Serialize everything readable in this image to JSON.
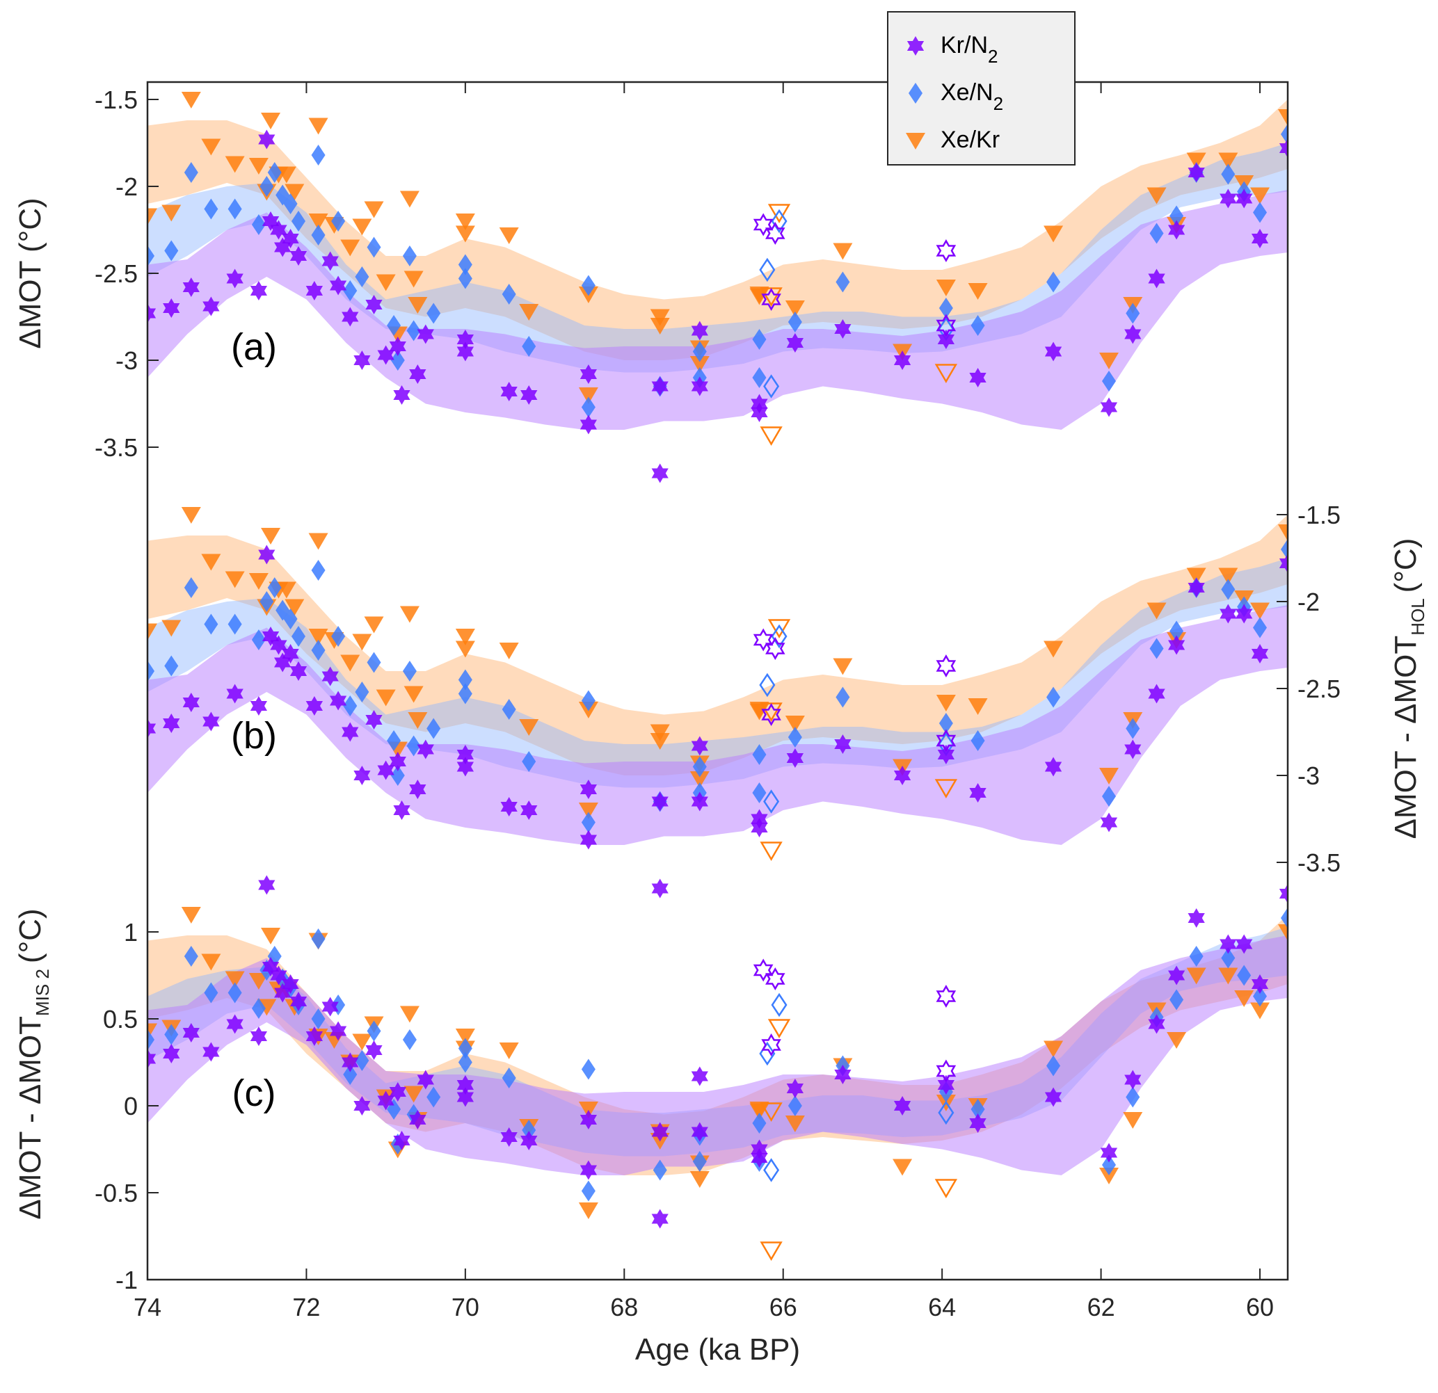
{
  "chart_data": {
    "type": "scatter",
    "title": "",
    "xlabel": "Age (ka BP)",
    "x_ticks": [
      74,
      72,
      70,
      68,
      66,
      64,
      62,
      60
    ],
    "xlim": [
      74,
      59.65
    ],
    "x_reversed": true,
    "legend": {
      "placement": "top-right",
      "entries": [
        {
          "label": "Kr/N",
          "sub": "2",
          "marker": "hexagram",
          "color": "#7F00FF"
        },
        {
          "label": "Xe/N",
          "sub": "2",
          "marker": "diamond",
          "color": "#3C7DFF"
        },
        {
          "label": "Xe/Kr",
          "sub": "",
          "marker": "triangle-down",
          "color": "#FF7F0E"
        }
      ]
    },
    "colors": {
      "kr": "#7F00FF",
      "xe": "#3C7DFF",
      "xekr": "#FF7F0E",
      "kr_band": "#B87BFF",
      "xe_band": "#8FB5FF",
      "xekr_band": "#FFBE85"
    },
    "panels": [
      {
        "label": "(a)",
        "ylabel": "ΔMOT (°C)",
        "ylabel_side": "left",
        "y_ticks": [
          -1.5,
          -2,
          -2.5,
          -3,
          -3.5
        ],
        "y_tick_labels": [
          "-1.5",
          "-2",
          "-2.5",
          "-3",
          "-3.5"
        ],
        "ylim": [
          -3.9,
          -1.4
        ],
        "y_inverted_labels": true,
        "bands": {
          "x": [
            74,
            73.5,
            73,
            72.5,
            72,
            71.5,
            71,
            70.5,
            70,
            69.5,
            69,
            68.5,
            68,
            67.5,
            67,
            66.5,
            66,
            65.5,
            65,
            64.5,
            64,
            63.5,
            63,
            62.5,
            62,
            61.5,
            61,
            60.5,
            60,
            59.65
          ],
          "kr_upper": [
            -2.45,
            -2.42,
            -2.25,
            -2.15,
            -2.35,
            -2.6,
            -2.8,
            -2.82,
            -2.82,
            -2.85,
            -2.9,
            -2.93,
            -2.92,
            -2.92,
            -2.92,
            -2.88,
            -2.82,
            -2.82,
            -2.84,
            -2.86,
            -2.83,
            -2.78,
            -2.72,
            -2.6,
            -2.4,
            -2.22,
            -2.15,
            -2.1,
            -2.05,
            -2.02
          ],
          "kr_lower": [
            -3.1,
            -2.85,
            -2.65,
            -2.52,
            -2.65,
            -2.9,
            -3.1,
            -3.25,
            -3.3,
            -3.33,
            -3.37,
            -3.4,
            -3.4,
            -3.35,
            -3.35,
            -3.32,
            -3.2,
            -3.15,
            -3.18,
            -3.22,
            -3.25,
            -3.3,
            -3.37,
            -3.4,
            -3.25,
            -2.9,
            -2.6,
            -2.45,
            -2.4,
            -2.38
          ],
          "xe_upper": [
            -2.15,
            -2.05,
            -2.0,
            -1.98,
            -2.15,
            -2.45,
            -2.65,
            -2.6,
            -2.55,
            -2.6,
            -2.7,
            -2.8,
            -2.82,
            -2.82,
            -2.8,
            -2.78,
            -2.75,
            -2.72,
            -2.72,
            -2.75,
            -2.75,
            -2.72,
            -2.65,
            -2.5,
            -2.25,
            -2.05,
            -1.95,
            -1.85,
            -1.8,
            -1.75
          ],
          "xe_lower": [
            -2.52,
            -2.4,
            -2.25,
            -2.2,
            -2.4,
            -2.65,
            -2.82,
            -2.85,
            -2.88,
            -2.95,
            -3.0,
            -3.05,
            -3.07,
            -3.07,
            -3.05,
            -3.02,
            -2.95,
            -2.93,
            -2.94,
            -2.96,
            -2.95,
            -2.9,
            -2.85,
            -2.75,
            -2.5,
            -2.25,
            -2.12,
            -2.07,
            -2.05,
            -2.03
          ],
          "xekr_upper": [
            -1.65,
            -1.62,
            -1.62,
            -1.7,
            -1.95,
            -2.2,
            -2.4,
            -2.4,
            -2.3,
            -2.35,
            -2.45,
            -2.55,
            -2.62,
            -2.65,
            -2.63,
            -2.55,
            -2.45,
            -2.42,
            -2.45,
            -2.48,
            -2.48,
            -2.42,
            -2.35,
            -2.2,
            -2.0,
            -1.88,
            -1.82,
            -1.75,
            -1.65,
            -1.5
          ],
          "xekr_lower": [
            -2.1,
            -2.05,
            -1.98,
            -2.05,
            -2.3,
            -2.5,
            -2.7,
            -2.75,
            -2.7,
            -2.75,
            -2.85,
            -2.95,
            -3.0,
            -3.0,
            -2.98,
            -2.9,
            -2.8,
            -2.78,
            -2.8,
            -2.82,
            -2.8,
            -2.75,
            -2.65,
            -2.5,
            -2.3,
            -2.15,
            -2.05,
            -2.0,
            -1.95,
            -1.9
          ]
        },
        "kr_points": [
          [
            74,
            -2.73
          ],
          [
            73.7,
            -2.7
          ],
          [
            73.45,
            -2.58
          ],
          [
            73.2,
            -2.69
          ],
          [
            72.9,
            -2.53
          ],
          [
            72.6,
            -2.6
          ],
          [
            72.5,
            -1.73
          ],
          [
            72.45,
            -2.2
          ],
          [
            72.35,
            -2.25
          ],
          [
            72.3,
            -2.35
          ],
          [
            72.2,
            -2.3
          ],
          [
            72.1,
            -2.4
          ],
          [
            71.9,
            -2.6
          ],
          [
            71.7,
            -2.43
          ],
          [
            71.6,
            -2.57
          ],
          [
            71.45,
            -2.75
          ],
          [
            71.3,
            -3.0
          ],
          [
            71.15,
            -2.68
          ],
          [
            71.0,
            -2.97
          ],
          [
            70.85,
            -2.92
          ],
          [
            70.8,
            -3.2
          ],
          [
            70.6,
            -3.08
          ],
          [
            70.5,
            -2.85
          ],
          [
            70.0,
            -2.88
          ],
          [
            70.0,
            -2.95
          ],
          [
            69.45,
            -3.18
          ],
          [
            69.2,
            -3.2
          ],
          [
            68.45,
            -3.08
          ],
          [
            68.45,
            -3.37
          ],
          [
            67.55,
            -3.65
          ],
          [
            67.55,
            -3.15
          ],
          [
            67.05,
            -2.83
          ],
          [
            67.05,
            -3.15
          ],
          [
            66.3,
            -3.25
          ],
          [
            66.3,
            -3.3
          ],
          [
            65.85,
            -2.9
          ],
          [
            65.25,
            -2.82
          ],
          [
            64.5,
            -3.0
          ],
          [
            63.95,
            -2.88
          ],
          [
            63.55,
            -3.1
          ],
          [
            62.6,
            -2.95
          ],
          [
            61.9,
            -3.27
          ],
          [
            61.6,
            -2.85
          ],
          [
            61.3,
            -2.53
          ],
          [
            61.05,
            -2.25
          ],
          [
            60.8,
            -1.92
          ],
          [
            60.4,
            -2.07
          ],
          [
            60.2,
            -2.07
          ],
          [
            60.0,
            -2.3
          ],
          [
            59.65,
            -1.78
          ]
        ],
        "kr_outliers": [
          [
            66.25,
            -2.22
          ],
          [
            66.1,
            -2.27
          ],
          [
            66.15,
            -2.65
          ],
          [
            63.95,
            -2.37
          ],
          [
            63.95,
            -2.8
          ]
        ],
        "xe_points": [
          [
            74,
            -2.4
          ],
          [
            73.7,
            -2.37
          ],
          [
            73.45,
            -1.92
          ],
          [
            73.2,
            -2.13
          ],
          [
            72.9,
            -2.13
          ],
          [
            72.6,
            -2.22
          ],
          [
            72.5,
            -2.0
          ],
          [
            72.4,
            -1.92
          ],
          [
            72.3,
            -2.05
          ],
          [
            72.2,
            -2.1
          ],
          [
            72.1,
            -2.2
          ],
          [
            71.85,
            -1.82
          ],
          [
            71.85,
            -2.28
          ],
          [
            71.6,
            -2.2
          ],
          [
            71.45,
            -2.6
          ],
          [
            71.3,
            -2.52
          ],
          [
            71.15,
            -2.35
          ],
          [
            70.9,
            -2.8
          ],
          [
            70.85,
            -3.0
          ],
          [
            70.7,
            -2.4
          ],
          [
            70.65,
            -2.83
          ],
          [
            70.4,
            -2.73
          ],
          [
            70.0,
            -2.45
          ],
          [
            70.0,
            -2.53
          ],
          [
            69.45,
            -2.62
          ],
          [
            69.2,
            -2.92
          ],
          [
            68.45,
            -2.57
          ],
          [
            68.45,
            -3.27
          ],
          [
            67.55,
            -3.15
          ],
          [
            67.05,
            -3.1
          ],
          [
            67.05,
            -2.95
          ],
          [
            66.3,
            -3.1
          ],
          [
            66.3,
            -2.88
          ],
          [
            65.85,
            -2.78
          ],
          [
            65.25,
            -2.55
          ],
          [
            63.95,
            -2.7
          ],
          [
            63.55,
            -2.8
          ],
          [
            62.6,
            -2.55
          ],
          [
            61.9,
            -3.12
          ],
          [
            61.6,
            -2.73
          ],
          [
            61.3,
            -2.27
          ],
          [
            61.05,
            -2.17
          ],
          [
            60.8,
            -1.92
          ],
          [
            60.4,
            -1.93
          ],
          [
            60.2,
            -2.03
          ],
          [
            60.0,
            -2.15
          ],
          [
            59.65,
            -1.7
          ]
        ],
        "xe_outliers": [
          [
            66.2,
            -2.48
          ],
          [
            66.15,
            -3.15
          ],
          [
            66.05,
            -2.2
          ],
          [
            63.95,
            -2.82
          ]
        ],
        "xekr_points": [
          [
            74,
            -2.17
          ],
          [
            73.7,
            -2.15
          ],
          [
            73.45,
            -1.5
          ],
          [
            73.2,
            -1.77
          ],
          [
            72.9,
            -1.87
          ],
          [
            72.6,
            -1.88
          ],
          [
            72.5,
            -2.03
          ],
          [
            72.45,
            -1.62
          ],
          [
            72.35,
            -1.93
          ],
          [
            72.25,
            -1.93
          ],
          [
            72.15,
            -2.03
          ],
          [
            71.85,
            -1.65
          ],
          [
            71.85,
            -2.2
          ],
          [
            71.65,
            -2.22
          ],
          [
            71.45,
            -2.35
          ],
          [
            71.3,
            -2.23
          ],
          [
            71.15,
            -2.13
          ],
          [
            71.0,
            -2.55
          ],
          [
            70.85,
            -2.85
          ],
          [
            70.7,
            -2.07
          ],
          [
            70.65,
            -2.53
          ],
          [
            70.6,
            -2.68
          ],
          [
            70.0,
            -2.2
          ],
          [
            70.0,
            -2.27
          ],
          [
            69.45,
            -2.28
          ],
          [
            69.2,
            -2.72
          ],
          [
            68.45,
            -2.62
          ],
          [
            68.45,
            -3.2
          ],
          [
            67.55,
            -2.75
          ],
          [
            67.55,
            -2.8
          ],
          [
            67.05,
            -2.93
          ],
          [
            67.05,
            -3.02
          ],
          [
            66.3,
            -2.62
          ],
          [
            66.3,
            -2.63
          ],
          [
            65.85,
            -2.7
          ],
          [
            65.25,
            -2.37
          ],
          [
            64.5,
            -2.95
          ],
          [
            63.95,
            -2.58
          ],
          [
            63.55,
            -2.6
          ],
          [
            62.6,
            -2.27
          ],
          [
            61.9,
            -3.0
          ],
          [
            61.6,
            -2.68
          ],
          [
            61.3,
            -2.05
          ],
          [
            61.05,
            -2.22
          ],
          [
            60.8,
            -1.85
          ],
          [
            60.4,
            -1.85
          ],
          [
            60.2,
            -1.98
          ],
          [
            60.0,
            -2.05
          ],
          [
            59.65,
            -1.6
          ]
        ],
        "xekr_outliers": [
          [
            66.05,
            -2.15
          ],
          [
            66.15,
            -2.63
          ],
          [
            66.15,
            -3.43
          ],
          [
            63.95,
            -3.07
          ]
        ]
      },
      {
        "label": "(b)",
        "ylabel": "ΔMOT - ΔMOT",
        "ylabel_sub": "HOL",
        "ylabel_unit": "(°C)",
        "ylabel_side": "right",
        "y_ticks": [
          -1.5,
          -2,
          -2.5,
          -3,
          -3.5
        ],
        "y_tick_labels": [
          "-1.5",
          "-2",
          "-2.5",
          "-3",
          "-3.5"
        ],
        "ylim": [
          -3.9,
          -1.4
        ],
        "offset_from_a": 0.58
      },
      {
        "label": "(c)",
        "ylabel": "ΔMOT - ΔMOT",
        "ylabel_sub": "MIS 2",
        "ylabel_unit": "(°C)",
        "ylabel_side": "left",
        "y_ticks": [
          1,
          0.5,
          0,
          -0.5,
          -1
        ],
        "y_tick_labels": [
          "1",
          "0.5",
          "0",
          "-0.5",
          "-1"
        ],
        "ylim": [
          -1,
          1.5
        ],
        "series_offsets_from_a": {
          "kr": 3.0,
          "xe": 2.78,
          "xekr": 2.6
        }
      }
    ]
  }
}
